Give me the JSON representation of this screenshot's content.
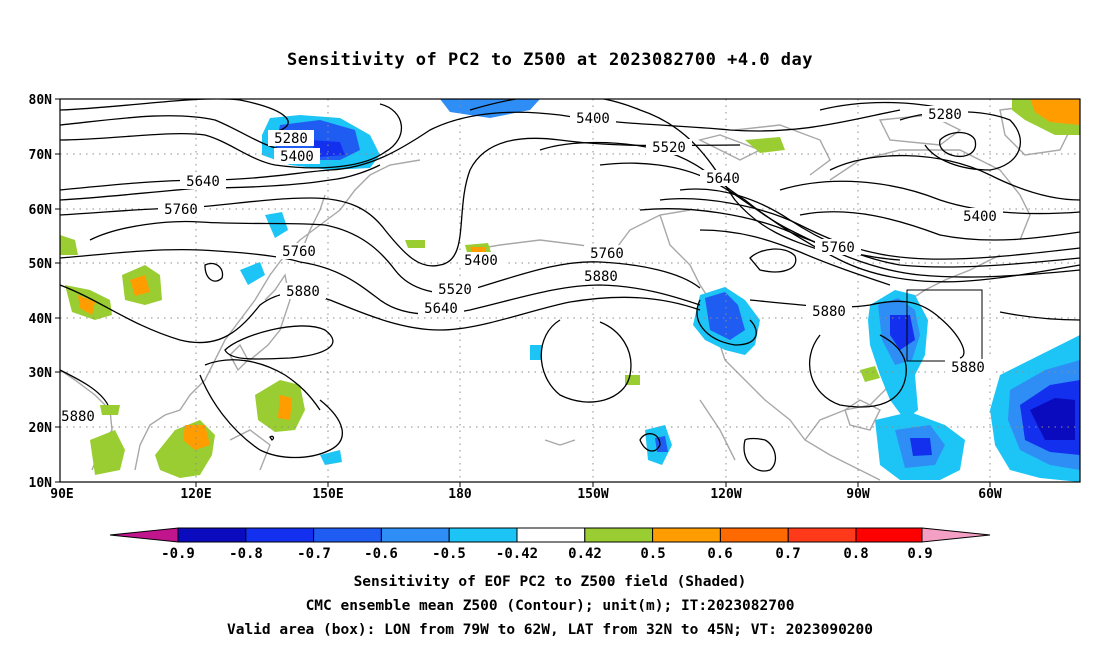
{
  "title": "Sensitivity of PC2 to Z500 at 2023082700 +4.0 day",
  "lat_labels": [
    "80N",
    "70N",
    "60N",
    "50N",
    "40N",
    "30N",
    "20N",
    "10N"
  ],
  "lon_labels": [
    "90E",
    "120E",
    "150E",
    "180",
    "150W",
    "120W",
    "90W",
    "60W"
  ],
  "contour_labels": {
    "c5280_a": "5280",
    "c5400_a": "5400",
    "c5640_a": "5640",
    "c5760_a": "5760",
    "c5760_b": "5760",
    "c5880_a": "5880",
    "c5400_b": "5400",
    "c5520_a": "5520",
    "c5640_b": "5640",
    "c5760_c": "5760",
    "c5880_b": "5880",
    "c5400_c": "5400",
    "c5520_b": "5520",
    "c5640_c": "5640",
    "c5760_d": "5760",
    "c5880_c": "5880",
    "c5280_b": "5280",
    "c5400_d": "5400",
    "c5880_d": "5880",
    "c5880_e": "5880"
  },
  "colorbar": {
    "labels": [
      "-0.9",
      "-0.8",
      "-0.7",
      "-0.6",
      "-0.5",
      "-0.42",
      "0.42",
      "0.5",
      "0.6",
      "0.7",
      "0.8",
      "0.9"
    ],
    "colors": [
      "#c0158c",
      "#0a0abf",
      "#1230ee",
      "#1f5cf2",
      "#2e8ef5",
      "#1cc5f5",
      "#ffffff",
      "#9acd32",
      "#ff9d00",
      "#ff6a00",
      "#ff3a1a",
      "#ff0000",
      "#f4a0c4"
    ]
  },
  "valid_box": {
    "lon_from": "79W",
    "lon_to": "62W",
    "lat_from": "32N",
    "lat_to": "45N"
  },
  "captions": {
    "line1": "Sensitivity of EOF PC2 to Z500 field (Shaded)",
    "line2": "CMC ensemble mean Z500 (Contour); unit(m); IT:2023082700",
    "line3": "Valid area (box): LON from 79W to 62W, LAT from 32N to 45N; VT: 2023090200"
  }
}
